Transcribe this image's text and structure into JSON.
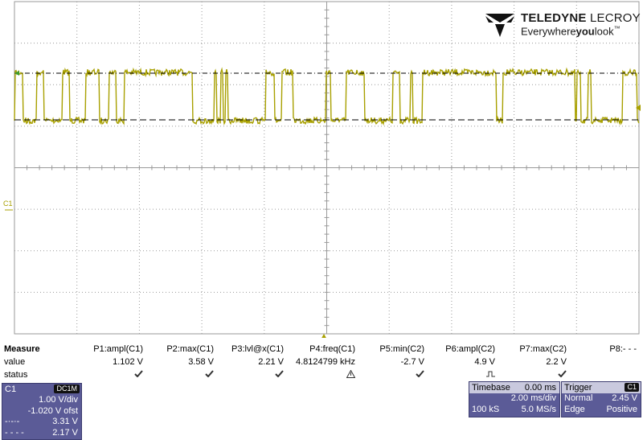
{
  "brand": {
    "name_bold": "TELEDYNE",
    "name_light": " LECROY",
    "tagline_pre": "Everywhere",
    "tagline_bold": "you",
    "tagline_post": "look",
    "tm": "™"
  },
  "channel_marker": "C1",
  "colors": {
    "trace": "#a8a000",
    "grid": "#9a9a9a",
    "descriptor": "#5b5b97",
    "descriptor_header": "#c9c9de"
  },
  "measure": {
    "title": "Measure",
    "row_labels": [
      "value",
      "status"
    ],
    "params": [
      {
        "name": "P1:ampl(C1)",
        "value": "1.102 V",
        "status": "check"
      },
      {
        "name": "P2:max(C1)",
        "value": "3.58 V",
        "status": "check"
      },
      {
        "name": "P3:lvl@x(C1)",
        "value": "2.21 V",
        "status": "check"
      },
      {
        "name": "P4:freq(C1)",
        "value": "4.8124799 kHz",
        "status": "warning"
      },
      {
        "name": "P5:min(C2)",
        "value": "-2.7 V",
        "status": "check"
      },
      {
        "name": "P6:ampl(C2)",
        "value": "4.9 V",
        "status": "pulse"
      },
      {
        "name": "P7:max(C2)",
        "value": "2.2 V",
        "status": "check"
      },
      {
        "name": "P8:- - -",
        "value": "",
        "status": ""
      }
    ]
  },
  "c1_box": {
    "label": "C1",
    "coupling": "DC1M",
    "vdiv": "1.00 V/div",
    "offset": "-1.020 V ofst",
    "cursor1_value": "3.31 V",
    "cursor2_value": "2.17 V"
  },
  "timebase": {
    "label": "Timebase",
    "delay": "0.00 ms",
    "tdiv": "2.00 ms/div",
    "samples": "100 kS",
    "rate": "5.0 MS/s"
  },
  "trigger": {
    "label": "Trigger",
    "source": "C1",
    "mode": "Normal",
    "level": "2.45 V",
    "type": "Edge",
    "slope": "Positive"
  }
}
